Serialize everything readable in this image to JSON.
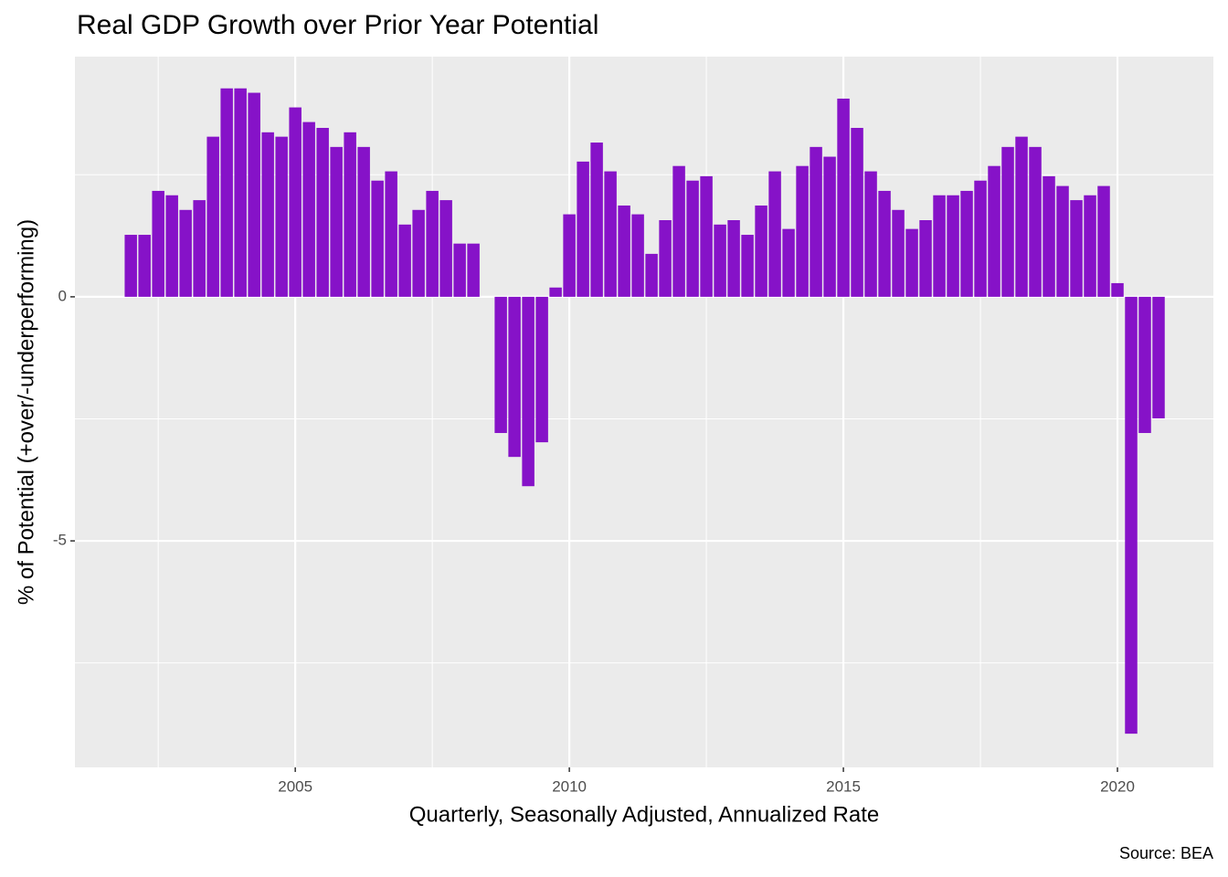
{
  "chart_data": {
    "type": "bar",
    "title": "Real GDP Growth over Prior Year Potential",
    "x_label": "Quarterly, Seasonally Adjusted, Annualized Rate",
    "y_label": "% of Potential (+over/-underperforming)",
    "caption": "Source: BEA",
    "color": "#8612c8",
    "grid": true,
    "x": [
      2002,
      2002.25,
      2002.5,
      2002.75,
      2003,
      2003.25,
      2003.5,
      2003.75,
      2004,
      2004.25,
      2004.5,
      2004.75,
      2005,
      2005.25,
      2005.5,
      2005.75,
      2006,
      2006.25,
      2006.5,
      2006.75,
      2007,
      2007.25,
      2007.5,
      2007.75,
      2008,
      2008.25,
      2008.5,
      2008.75,
      2009,
      2009.25,
      2009.5,
      2009.75,
      2010,
      2010.25,
      2010.5,
      2010.75,
      2011,
      2011.25,
      2011.5,
      2011.75,
      2012,
      2012.25,
      2012.5,
      2012.75,
      2013,
      2013.25,
      2013.5,
      2013.75,
      2014,
      2014.25,
      2014.5,
      2014.75,
      2015,
      2015.25,
      2015.5,
      2015.75,
      2016,
      2016.25,
      2016.5,
      2016.75,
      2017,
      2017.25,
      2017.5,
      2017.75,
      2018,
      2018.25,
      2018.5,
      2018.75,
      2019,
      2019.25,
      2019.5,
      2019.75,
      2020,
      2020.25,
      2020.5,
      2020.75
    ],
    "values": [
      1.27,
      1.27,
      2.17,
      2.08,
      1.78,
      1.98,
      3.28,
      4.27,
      4.27,
      4.18,
      3.37,
      3.28,
      3.88,
      3.58,
      3.46,
      3.07,
      3.37,
      3.07,
      2.38,
      2.57,
      1.48,
      1.78,
      2.17,
      1.98,
      1.09,
      1.09,
      null,
      -2.79,
      -3.28,
      -3.88,
      -2.98,
      0.19,
      1.69,
      2.77,
      3.16,
      2.57,
      1.87,
      1.69,
      0.88,
      1.57,
      2.68,
      2.38,
      2.47,
      1.48,
      1.57,
      1.27,
      1.87,
      2.57,
      1.39,
      2.68,
      3.07,
      2.87,
      4.06,
      3.46,
      2.57,
      2.17,
      1.78,
      1.39,
      1.57,
      2.08,
      2.08,
      2.17,
      2.38,
      2.68,
      3.07,
      3.28,
      3.07,
      2.47,
      2.27,
      1.98,
      2.08,
      2.27,
      0.28,
      -8.95,
      -2.79,
      -2.49
    ],
    "bar_width": 0.225,
    "xlim": [
      2000.98,
      2021.75
    ],
    "ylim": [
      -9.64,
      4.92
    ],
    "xticks": [
      2005,
      2010,
      2015,
      2020
    ],
    "yticks": [
      -5,
      0
    ],
    "x_minor_ticks": [
      2002.5,
      2007.5,
      2012.5,
      2017.5
    ],
    "y_minor_ticks": [
      -7.5,
      -2.5,
      2.5
    ]
  }
}
